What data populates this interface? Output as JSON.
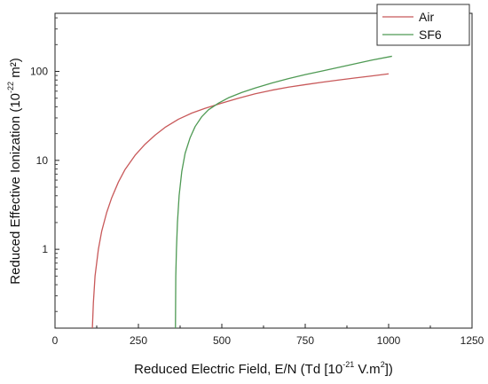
{
  "chart_data": {
    "type": "line",
    "title": "",
    "xlabel": "Reduced Electric Field, E/N (Td [10",
    "xlabel_sup": "-21",
    "xlabel_tail": " V.m",
    "xlabel_sup2": "2",
    "xlabel_end": "])",
    "ylabel": "Reduced Effective Ionization (10",
    "ylabel_sup": "-22",
    "ylabel_tail": " m²)",
    "xlim": [
      0,
      1250
    ],
    "ylim": [
      0.13,
      450
    ],
    "yscale": "log",
    "x_ticks": [
      "0",
      "250",
      "500",
      "750",
      "1000",
      "1250"
    ],
    "y_ticks": [
      "1",
      "10",
      "100"
    ],
    "legend_position": "top-right",
    "series": [
      {
        "name": "Air",
        "color": "#c8595a",
        "x": [
          112,
          115,
          120,
          130,
          140,
          155,
          170,
          190,
          210,
          240,
          270,
          300,
          330,
          370,
          410,
          450,
          500,
          550,
          600,
          650,
          700,
          750,
          800,
          850,
          900,
          950,
          1000
        ],
        "y": [
          0.13,
          0.25,
          0.5,
          1.0,
          1.6,
          2.6,
          3.8,
          5.7,
          7.9,
          11.4,
          15.2,
          19.2,
          23.5,
          29.0,
          34.0,
          38.5,
          44.0,
          50.0,
          56.0,
          61.5,
          66.5,
          71.0,
          75.5,
          80.0,
          84.5,
          89.0,
          94.0
        ]
      },
      {
        "name": "SF6",
        "color": "#4f9a54",
        "x": [
          361,
          362,
          364,
          367,
          372,
          380,
          390,
          405,
          420,
          440,
          460,
          490,
          520,
          560,
          600,
          650,
          700,
          750,
          800,
          850,
          900,
          950,
          1010
        ],
        "y": [
          0.13,
          0.5,
          1.0,
          2.0,
          4.0,
          7.5,
          12.0,
          18.0,
          24.0,
          31.0,
          37.0,
          44.0,
          50.5,
          58.0,
          65.0,
          74.0,
          83.0,
          92.0,
          101.0,
          111.0,
          122.0,
          134.0,
          148.0
        ]
      }
    ]
  }
}
